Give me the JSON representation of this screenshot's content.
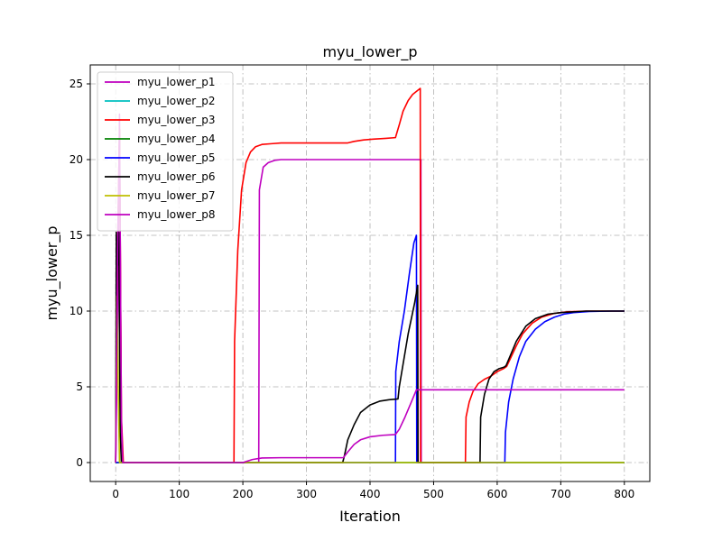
{
  "chart_data": {
    "type": "line",
    "title": "myu_lower_p",
    "xlabel": "Iteration",
    "ylabel": "myu_lower_p",
    "xlim": [
      -40,
      840
    ],
    "ylim": [
      -1.25,
      26.25
    ],
    "xticks": [
      0,
      100,
      200,
      300,
      400,
      500,
      600,
      700,
      800
    ],
    "yticks": [
      0,
      5,
      10,
      15,
      20,
      25
    ],
    "grid": true,
    "grid_style": "dash-dot",
    "legend_position": "upper-left",
    "series": [
      {
        "name": "myu_lower_p1",
        "color": "#bf00bf",
        "points": [
          [
            0,
            0
          ],
          [
            3,
            9
          ],
          [
            6,
            23
          ],
          [
            9,
            2
          ],
          [
            11,
            0
          ],
          [
            225,
            0
          ],
          [
            226,
            18
          ],
          [
            232,
            19.5
          ],
          [
            240,
            19.8
          ],
          [
            250,
            19.95
          ],
          [
            260,
            20
          ],
          [
            480,
            20
          ],
          [
            480.5,
            0
          ],
          [
            482,
            0
          ],
          [
            800,
            0
          ]
        ]
      },
      {
        "name": "myu_lower_p2",
        "color": "#00bfbf",
        "points": [
          [
            0,
            0
          ],
          [
            800,
            0
          ]
        ]
      },
      {
        "name": "myu_lower_p3",
        "color": "#ff0000",
        "points": [
          [
            0,
            0
          ],
          [
            3,
            14
          ],
          [
            6,
            22
          ],
          [
            9,
            3
          ],
          [
            12,
            0
          ],
          [
            186,
            0
          ],
          [
            187,
            8
          ],
          [
            192,
            14
          ],
          [
            198,
            18
          ],
          [
            205,
            19.8
          ],
          [
            212,
            20.5
          ],
          [
            220,
            20.85
          ],
          [
            230,
            21.0
          ],
          [
            245,
            21.05
          ],
          [
            260,
            21.1
          ],
          [
            365,
            21.1
          ],
          [
            375,
            21.2
          ],
          [
            390,
            21.3
          ],
          [
            405,
            21.35
          ],
          [
            425,
            21.4
          ],
          [
            440,
            21.45
          ],
          [
            446,
            22.3
          ],
          [
            452,
            23.2
          ],
          [
            460,
            23.9
          ],
          [
            467,
            24.3
          ],
          [
            479,
            24.7
          ],
          [
            479.5,
            0
          ],
          [
            482,
            0
          ],
          [
            550,
            0
          ],
          [
            551,
            3
          ],
          [
            556,
            4
          ],
          [
            562,
            4.7
          ],
          [
            570,
            5.2
          ],
          [
            580,
            5.5
          ],
          [
            590,
            5.7
          ],
          [
            600,
            6.0
          ],
          [
            610,
            6.2
          ],
          [
            615,
            6.35
          ],
          [
            620,
            6.8
          ],
          [
            630,
            7.7
          ],
          [
            640,
            8.5
          ],
          [
            655,
            9.2
          ],
          [
            670,
            9.6
          ],
          [
            690,
            9.85
          ],
          [
            710,
            9.95
          ],
          [
            740,
            10.0
          ],
          [
            800,
            10.0
          ]
        ]
      },
      {
        "name": "myu_lower_p4",
        "color": "#008000",
        "points": [
          [
            0,
            0
          ],
          [
            800,
            0
          ]
        ]
      },
      {
        "name": "myu_lower_p5",
        "color": "#0000ff",
        "points": [
          [
            0,
            0
          ],
          [
            440,
            0
          ],
          [
            440.5,
            6
          ],
          [
            446,
            8
          ],
          [
            454,
            10
          ],
          [
            462,
            12.5
          ],
          [
            469,
            14.5
          ],
          [
            473,
            15
          ],
          [
            473.5,
            0
          ],
          [
            475,
            0
          ],
          [
            612,
            0
          ],
          [
            613,
            2
          ],
          [
            618,
            4
          ],
          [
            625,
            5.5
          ],
          [
            635,
            7
          ],
          [
            645,
            8
          ],
          [
            660,
            8.8
          ],
          [
            675,
            9.3
          ],
          [
            690,
            9.6
          ],
          [
            705,
            9.8
          ],
          [
            720,
            9.9
          ],
          [
            745,
            9.97
          ],
          [
            780,
            10.0
          ],
          [
            800,
            10.0
          ]
        ]
      },
      {
        "name": "myu_lower_p6",
        "color": "#000000",
        "points": [
          [
            0,
            0
          ],
          [
            1,
            15.2
          ],
          [
            3,
            13
          ],
          [
            5,
            15.2
          ],
          [
            7,
            2
          ],
          [
            9,
            0
          ],
          [
            357,
            0
          ],
          [
            360,
            0.5
          ],
          [
            365,
            1.5
          ],
          [
            375,
            2.5
          ],
          [
            385,
            3.3
          ],
          [
            400,
            3.8
          ],
          [
            415,
            4.05
          ],
          [
            430,
            4.15
          ],
          [
            444,
            4.2
          ],
          [
            446,
            5
          ],
          [
            452,
            6.5
          ],
          [
            460,
            8.5
          ],
          [
            470,
            10.5
          ],
          [
            475,
            11.7
          ],
          [
            475.5,
            0
          ],
          [
            478,
            0
          ],
          [
            573,
            0
          ],
          [
            574,
            3
          ],
          [
            580,
            4.5
          ],
          [
            587,
            5.5
          ],
          [
            595,
            6.0
          ],
          [
            603,
            6.2
          ],
          [
            611,
            6.3
          ],
          [
            614,
            6.4
          ],
          [
            620,
            7
          ],
          [
            630,
            8
          ],
          [
            645,
            9
          ],
          [
            660,
            9.5
          ],
          [
            680,
            9.8
          ],
          [
            700,
            9.9
          ],
          [
            740,
            10.0
          ],
          [
            800,
            10.0
          ]
        ]
      },
      {
        "name": "myu_lower_p7",
        "color": "#bfbf00",
        "points": [
          [
            0,
            0
          ],
          [
            2,
            11
          ],
          [
            4,
            5
          ],
          [
            6,
            0
          ],
          [
            800,
            0
          ]
        ]
      },
      {
        "name": "myu_lower_p8",
        "color": "#bf00bf",
        "points": [
          [
            0,
            0
          ],
          [
            3,
            14
          ],
          [
            6,
            22
          ],
          [
            9,
            3
          ],
          [
            11,
            0
          ],
          [
            200,
            0
          ],
          [
            215,
            0.2
          ],
          [
            230,
            0.3
          ],
          [
            260,
            0.32
          ],
          [
            358,
            0.32
          ],
          [
            365,
            0.7
          ],
          [
            375,
            1.2
          ],
          [
            385,
            1.5
          ],
          [
            400,
            1.7
          ],
          [
            420,
            1.8
          ],
          [
            440,
            1.85
          ],
          [
            446,
            2.2
          ],
          [
            455,
            3.0
          ],
          [
            465,
            4.0
          ],
          [
            473,
            4.8
          ],
          [
            480,
            4.8
          ],
          [
            800,
            4.8
          ]
        ]
      }
    ]
  }
}
